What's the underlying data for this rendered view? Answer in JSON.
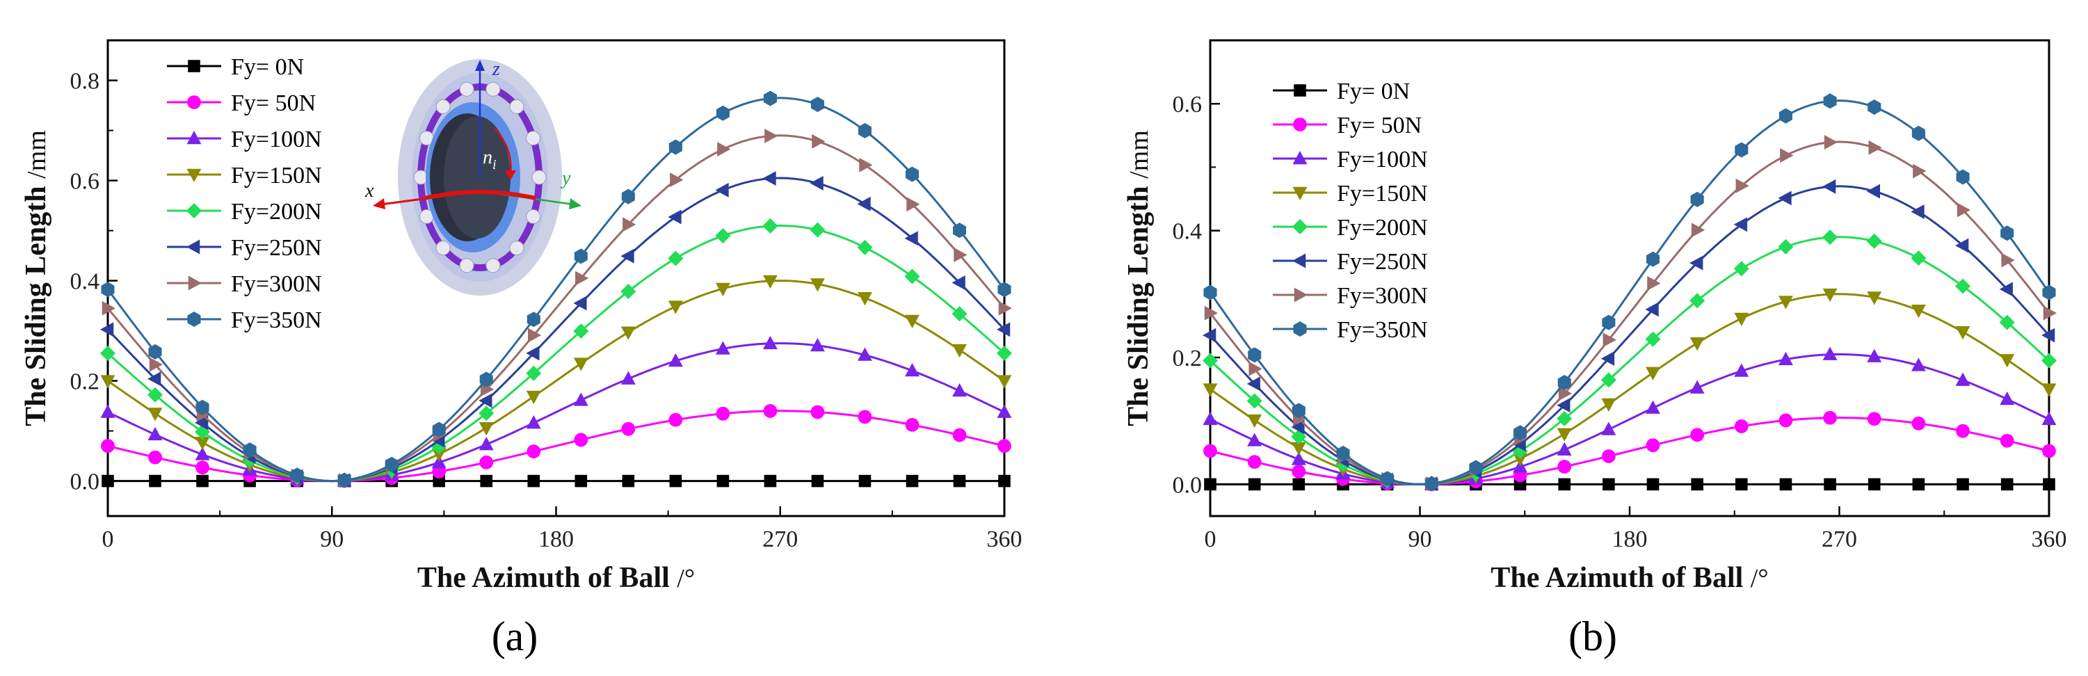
{
  "chart_data": [
    {
      "type": "line",
      "panel_label": "(a)",
      "xlabel": "The Azimuth of Ball",
      "xunit": "/°",
      "ylabel": "The Sliding Length",
      "yunit": "/mm",
      "xlim": [
        0,
        360
      ],
      "ylim": [
        -0.07,
        0.88
      ],
      "xticks": [
        0,
        90,
        180,
        270,
        360
      ],
      "xtick_labels": [
        "0",
        "90",
        "180",
        "270",
        "360"
      ],
      "yticks": [
        0.0,
        0.2,
        0.4,
        0.6,
        0.8
      ],
      "ytick_labels": [
        "0.0",
        "0.2",
        "0.4",
        "0.6",
        "0.8"
      ],
      "x": [
        0,
        19,
        38,
        57,
        76,
        95,
        114,
        133,
        152,
        171,
        190,
        209,
        228,
        247,
        266,
        285,
        304,
        323,
        342,
        360
      ],
      "legend_position": "top-left",
      "series": [
        {
          "name": "Fy=   0N",
          "color": "#000000",
          "marker": "square",
          "amplitude": 0.0
        },
        {
          "name": "Fy=  50N",
          "color": "#ff00ff",
          "marker": "circle",
          "amplitude": 0.14
        },
        {
          "name": "Fy=100N",
          "color": "#7a22e8",
          "marker": "triangle-up",
          "amplitude": 0.275
        },
        {
          "name": "Fy=150N",
          "color": "#8b8b00",
          "marker": "triangle-down",
          "amplitude": 0.4
        },
        {
          "name": "Fy=200N",
          "color": "#22dd55",
          "marker": "diamond",
          "amplitude": 0.51
        },
        {
          "name": "Fy=250N",
          "color": "#2a3e9a",
          "marker": "triangle-left",
          "amplitude": 0.605
        },
        {
          "name": "Fy=300N",
          "color": "#9c6b6b",
          "marker": "triangle-right",
          "amplitude": 0.69
        },
        {
          "name": "Fy=350N",
          "color": "#2e6a9a",
          "marker": "hexagon",
          "amplitude": 0.765
        }
      ],
      "inset": {
        "axis_labels": [
          "z",
          "x",
          "y"
        ],
        "rotation_label": "n",
        "rotation_subscript": "i"
      }
    },
    {
      "type": "line",
      "panel_label": "(b)",
      "xlabel": "The Azimuth of Ball",
      "xunit": "/°",
      "ylabel": "The Sliding Length",
      "yunit": "/mm",
      "xlim": [
        0,
        360
      ],
      "ylim": [
        -0.05,
        0.7
      ],
      "xticks": [
        0,
        90,
        180,
        270,
        360
      ],
      "xtick_labels": [
        "0",
        "90",
        "180",
        "270",
        "360"
      ],
      "yticks": [
        0.0,
        0.2,
        0.4,
        0.6
      ],
      "ytick_labels": [
        "0.0",
        "0.2",
        "0.4",
        "0.6"
      ],
      "x": [
        0,
        19,
        38,
        57,
        76,
        95,
        114,
        133,
        152,
        171,
        190,
        209,
        228,
        247,
        266,
        285,
        304,
        323,
        342,
        360
      ],
      "legend_position": "top-left",
      "series": [
        {
          "name": "Fy=  0N",
          "color": "#000000",
          "marker": "square",
          "amplitude": 0.0
        },
        {
          "name": "Fy= 50N",
          "color": "#ff00ff",
          "marker": "circle",
          "amplitude": 0.105
        },
        {
          "name": "Fy=100N",
          "color": "#7a22e8",
          "marker": "triangle-up",
          "amplitude": 0.205
        },
        {
          "name": "Fy=150N",
          "color": "#8b8b00",
          "marker": "triangle-down",
          "amplitude": 0.3
        },
        {
          "name": "Fy=200N",
          "color": "#22dd55",
          "marker": "diamond",
          "amplitude": 0.39
        },
        {
          "name": "Fy=250N",
          "color": "#2a3e9a",
          "marker": "triangle-left",
          "amplitude": 0.47
        },
        {
          "name": "Fy=300N",
          "color": "#9c6b6b",
          "marker": "triangle-right",
          "amplitude": 0.54
        },
        {
          "name": "Fy=350N",
          "color": "#2e6a9a",
          "marker": "hexagon",
          "amplitude": 0.605
        }
      ]
    }
  ]
}
